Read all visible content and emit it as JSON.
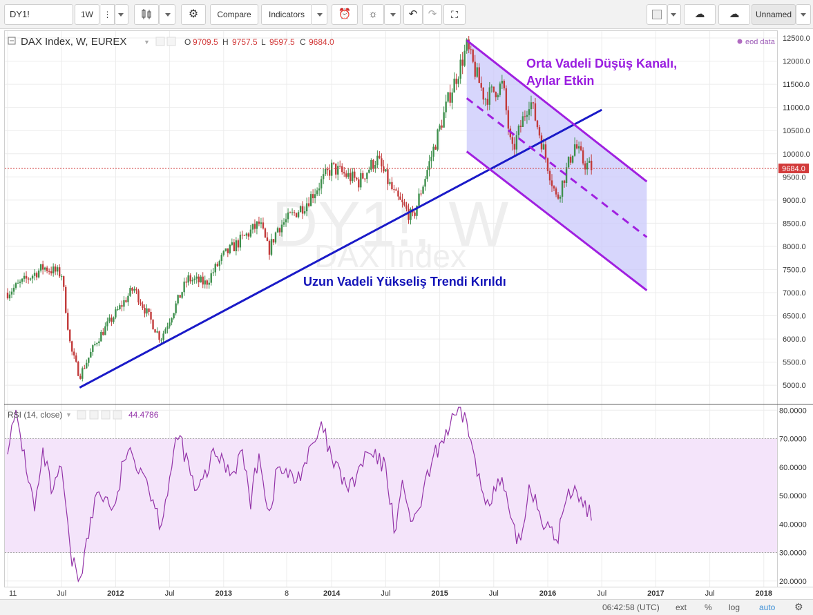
{
  "toolbar": {
    "symbol": "DY1!",
    "interval": "1W",
    "compare_label": "Compare",
    "indicators_label": "Indicators",
    "layout_name": "Unnamed"
  },
  "legend": {
    "title": "DAX Index, W, EUREX",
    "o_label": "O",
    "o_value": "9709.5",
    "h_label": "H",
    "h_value": "9757.5",
    "l_label": "L",
    "l_value": "9597.5",
    "c_label": "C",
    "c_value": "9684.0",
    "eod": "eod data",
    "rsi_title": "RSI (14, close)",
    "rsi_value": "44.4786"
  },
  "watermark": {
    "symbol": "DY1!, W",
    "name": "DAX Index"
  },
  "annotations": {
    "channel_line1": "Orta Vadeli Düşüş Kanalı,",
    "channel_line2": "Ayılar Etkin",
    "trend_text": "Uzun Vadeli Yükseliş Trendi Kırıldı"
  },
  "price_label": "9684.0",
  "status": {
    "time": "06:42:58 (UTC)",
    "ext": "ext",
    "percent": "%",
    "log": "log",
    "auto": "auto"
  },
  "colors": {
    "up": "#3d8f4c",
    "down": "#c23b3b",
    "trend": "#1a1ac8",
    "channel": "#a020e0",
    "channel_fill": "#c9c8fb",
    "rsi": "#9333a8",
    "rsi_band": "#f4e4fa"
  },
  "chart_data": [
    {
      "type": "candlestick",
      "title": "DAX Index, W, EUREX",
      "x_tick_labels": [
        "11",
        "Jul",
        "2012",
        "Jul",
        "2013",
        "8",
        "2014",
        "Jul",
        "2015",
        "Jul",
        "2016",
        "Jul",
        "2017",
        "Jul",
        "2018"
      ],
      "y_ticks": [
        5000.0,
        5500.0,
        6000.0,
        6500.0,
        7000.0,
        7500.0,
        8000.0,
        8500.0,
        9000.0,
        9500.0,
        10000.0,
        10500.0,
        11000.0,
        11500.0,
        12000.0,
        12500.0
      ],
      "ylim": [
        4600,
        12650
      ],
      "price_path": [
        [
          "2011-01",
          7000
        ],
        [
          "2011-05",
          7550
        ],
        [
          "2011-07",
          7400
        ],
        [
          "2011-08",
          5800
        ],
        [
          "2011-09",
          5200
        ],
        [
          "2011-11",
          6000
        ],
        [
          "2012-03",
          7100
        ],
        [
          "2012-06",
          6000
        ],
        [
          "2012-09",
          7300
        ],
        [
          "2012-11",
          7200
        ],
        [
          "2013-01",
          7800
        ],
        [
          "2013-05",
          8500
        ],
        [
          "2013-06",
          7900
        ],
        [
          "2013-07",
          8400
        ],
        [
          "2013-10",
          8900
        ],
        [
          "2014-01",
          9700
        ],
        [
          "2014-04",
          9400
        ],
        [
          "2014-06",
          9900
        ],
        [
          "2014-08",
          9100
        ],
        [
          "2014-10",
          8600
        ],
        [
          "2014-12",
          9900
        ],
        [
          "2015-02",
          11200
        ],
        [
          "2015-04",
          12300
        ],
        [
          "2015-06",
          11200
        ],
        [
          "2015-08",
          11500
        ],
        [
          "2015-09",
          10000
        ],
        [
          "2015-11",
          11200
        ],
        [
          "2015-12",
          10500
        ],
        [
          "2016-02",
          9000
        ],
        [
          "2016-04",
          10200
        ],
        [
          "2016-05",
          9800
        ],
        [
          "2016-06",
          9684
        ]
      ],
      "trendline": {
        "label": "Uzun Vadeli Yükseliş Trendi Kırıldı",
        "from": [
          "2011-09",
          4950
        ],
        "to": [
          "2016-07",
          10950
        ]
      },
      "channel": {
        "label": "Orta Vadeli Düşüş Kanalı, Ayılar Etkin",
        "upper": {
          "from": [
            "2015-04",
            12450
          ],
          "to": [
            "2016-12",
            9400
          ]
        },
        "middle": {
          "from": [
            "2015-04",
            11200
          ],
          "to": [
            "2016-12",
            8200
          ]
        },
        "lower": {
          "from": [
            "2015-04",
            10050
          ],
          "to": [
            "2016-12",
            7050
          ]
        }
      },
      "last_price": 9684.0
    },
    {
      "type": "line",
      "title": "RSI (14, close)",
      "y_ticks": [
        20.0,
        30.0,
        40.0,
        50.0,
        60.0,
        70.0,
        80.0
      ],
      "ylim": [
        18,
        82
      ],
      "bands": [
        30,
        70
      ],
      "rsi_path": [
        [
          "2011-01",
          68
        ],
        [
          "2011-02",
          78
        ],
        [
          "2011-04",
          45
        ],
        [
          "2011-05",
          65
        ],
        [
          "2011-06",
          50
        ],
        [
          "2011-07",
          60
        ],
        [
          "2011-08",
          28
        ],
        [
          "2011-09",
          21
        ],
        [
          "2011-11",
          52
        ],
        [
          "2012-01",
          45
        ],
        [
          "2012-02",
          65
        ],
        [
          "2012-04",
          60
        ],
        [
          "2012-06",
          40
        ],
        [
          "2012-08",
          72
        ],
        [
          "2012-10",
          50
        ],
        [
          "2012-12",
          65
        ],
        [
          "2013-02",
          58
        ],
        [
          "2013-03",
          66
        ],
        [
          "2013-04",
          48
        ],
        [
          "2013-05",
          66
        ],
        [
          "2013-06",
          42
        ],
        [
          "2013-07",
          60
        ],
        [
          "2013-09",
          55
        ],
        [
          "2013-12",
          74
        ],
        [
          "2014-01",
          62
        ],
        [
          "2014-03",
          52
        ],
        [
          "2014-05",
          65
        ],
        [
          "2014-07",
          60
        ],
        [
          "2014-08",
          38
        ],
        [
          "2014-09",
          55
        ],
        [
          "2014-10",
          38
        ],
        [
          "2014-12",
          60
        ],
        [
          "2015-01",
          68
        ],
        [
          "2015-03",
          79
        ],
        [
          "2015-04",
          77
        ],
        [
          "2015-05",
          60
        ],
        [
          "2015-06",
          48
        ],
        [
          "2015-08",
          55
        ],
        [
          "2015-09",
          38
        ],
        [
          "2015-10",
          34
        ],
        [
          "2015-11",
          55
        ],
        [
          "2015-12",
          45
        ],
        [
          "2016-01",
          38
        ],
        [
          "2016-02",
          34
        ],
        [
          "2016-03",
          48
        ],
        [
          "2016-04",
          54
        ],
        [
          "2016-05",
          46
        ],
        [
          "2016-06",
          44.48
        ]
      ]
    }
  ]
}
